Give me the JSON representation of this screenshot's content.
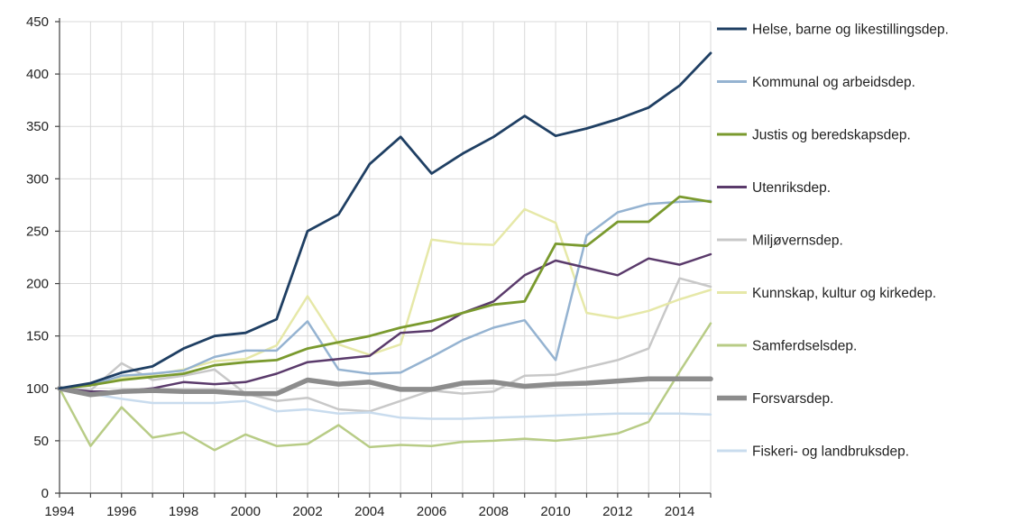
{
  "chart_data": {
    "type": "line",
    "title": "",
    "xlabel": "",
    "ylabel": "",
    "x": [
      1994,
      1995,
      1996,
      1997,
      1998,
      1999,
      2000,
      2001,
      2002,
      2003,
      2004,
      2005,
      2006,
      2007,
      2008,
      2009,
      2010,
      2011,
      2012,
      2013,
      2014,
      2015
    ],
    "x_tick_labels": [
      "1994",
      "1996",
      "1998",
      "2000",
      "2002",
      "2004",
      "2006",
      "2008",
      "2010",
      "2012",
      "2014"
    ],
    "y_tick_labels": [
      "0",
      "50",
      "100",
      "150",
      "200",
      "250",
      "300",
      "350",
      "400",
      "450"
    ],
    "ylim": [
      0,
      450
    ],
    "grid": "vertical and horizontal",
    "legend": "right",
    "series": [
      {
        "name": "Helse, barne og likestillingsdep.",
        "color": "#1f3f63",
        "width": 2.8,
        "values": [
          100,
          105,
          115,
          121,
          138,
          150,
          153,
          166,
          250,
          266,
          314,
          340,
          305,
          324,
          340,
          360,
          341,
          348,
          357,
          368,
          389,
          420
        ]
      },
      {
        "name": "Kommunal og arbeidsdep.",
        "color": "#95b3d1",
        "width": 2.5,
        "values": [
          100,
          103,
          112,
          114,
          117,
          130,
          136,
          136,
          164,
          118,
          114,
          115,
          130,
          146,
          158,
          165,
          127,
          246,
          268,
          276,
          278,
          279
        ]
      },
      {
        "name": "Justis og beredskapsdep.",
        "color": "#7a9a2e",
        "width": 2.8,
        "values": [
          100,
          103,
          108,
          111,
          114,
          122,
          125,
          127,
          138,
          144,
          150,
          158,
          164,
          172,
          180,
          183,
          238,
          236,
          259,
          259,
          283,
          278
        ]
      },
      {
        "name": "Utenriksdep.",
        "color": "#5a3a6b",
        "width": 2.5,
        "values": [
          100,
          97,
          97,
          100,
          106,
          104,
          106,
          114,
          125,
          128,
          131,
          153,
          155,
          172,
          183,
          208,
          222,
          215,
          208,
          224,
          218,
          228
        ]
      },
      {
        "name": "Miljøvernsdep.",
        "color": "#c8c8c8",
        "width": 2.5,
        "values": [
          100,
          98,
          124,
          108,
          112,
          118,
          95,
          88,
          91,
          80,
          78,
          88,
          98,
          95,
          97,
          112,
          113,
          120,
          127,
          138,
          205,
          197
        ]
      },
      {
        "name": "Kunnskap, kultur og kirkedep.",
        "color": "#e6e8a8",
        "width": 2.5,
        "values": [
          100,
          103,
          110,
          113,
          118,
          126,
          128,
          141,
          188,
          142,
          132,
          142,
          242,
          238,
          237,
          271,
          258,
          172,
          167,
          174,
          185,
          194
        ]
      },
      {
        "name": "Samferdselsdep.",
        "color": "#b8cc86",
        "width": 2.5,
        "values": [
          100,
          45,
          82,
          53,
          58,
          41,
          56,
          45,
          47,
          65,
          44,
          46,
          45,
          49,
          50,
          52,
          50,
          53,
          57,
          68,
          116,
          162
        ]
      },
      {
        "name": "Forsvarsdep.",
        "color": "#8c8c8c",
        "width": 5.5,
        "values": [
          100,
          94,
          97,
          98,
          97,
          97,
          95,
          95,
          108,
          104,
          106,
          99,
          99,
          105,
          106,
          102,
          104,
          105,
          107,
          109,
          109,
          109
        ]
      },
      {
        "name": "Fiskeri- og landbruksdep.",
        "color": "#c9dcee",
        "width": 2.5,
        "values": [
          100,
          95,
          90,
          86,
          86,
          86,
          88,
          78,
          80,
          76,
          77,
          72,
          71,
          71,
          72,
          73,
          74,
          75,
          76,
          76,
          76,
          75
        ]
      }
    ]
  }
}
